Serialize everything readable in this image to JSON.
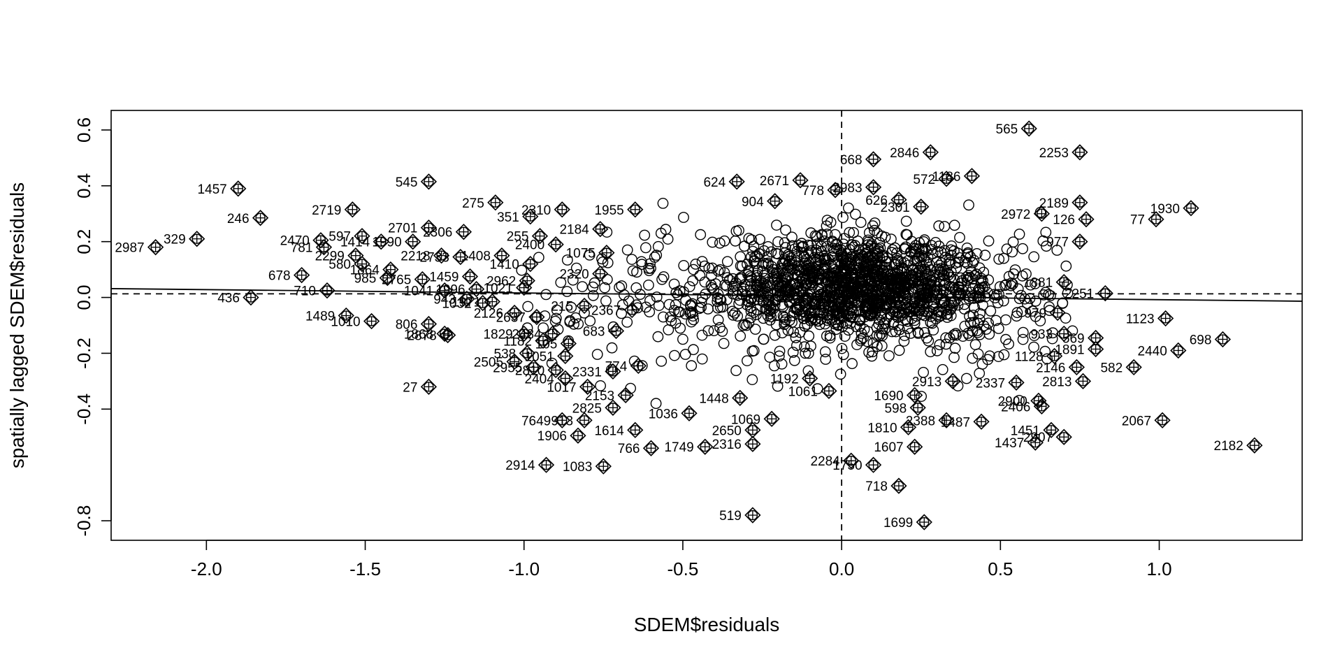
{
  "chart_data": {
    "type": "scatter",
    "title": "",
    "xlabel": "SDEM$residuals",
    "ylabel": "spatially lagged SDEM$residuals",
    "xlim": [
      -2.3,
      1.45
    ],
    "ylim": [
      -0.87,
      0.67
    ],
    "xticks": [
      -2.0,
      -1.5,
      -1.0,
      -0.5,
      0.0,
      0.5,
      1.0
    ],
    "xtick_labels": [
      "-2.0",
      "-1.5",
      "-1.0",
      "-0.5",
      "0.0",
      "0.5",
      "1.0"
    ],
    "yticks": [
      -0.8,
      -0.4,
      -0.2,
      0.0,
      0.2,
      0.4,
      0.6
    ],
    "ytick_labels": [
      "-0.8",
      "-0.4",
      "-0.2",
      "0.0",
      "0.2",
      "0.4",
      "0.6"
    ],
    "grid": false,
    "legend": "none",
    "reference_lines": {
      "vertical_dashed_x": 0.0,
      "horizontal_dashed_y": 0.013,
      "regression_line": {
        "intercept": 0.004,
        "slope": -0.012
      }
    },
    "influential_points": [
      {
        "label": "1457",
        "x": -1.9,
        "y": 0.39
      },
      {
        "label": "246",
        "x": -1.83,
        "y": 0.285
      },
      {
        "label": "2987",
        "x": -2.16,
        "y": 0.18
      },
      {
        "label": "329",
        "x": -2.03,
        "y": 0.21
      },
      {
        "label": "436",
        "x": -1.86,
        "y": 0.0
      },
      {
        "label": "678",
        "x": -1.7,
        "y": 0.08
      },
      {
        "label": "710",
        "x": -1.62,
        "y": 0.025
      },
      {
        "label": "1489",
        "x": -1.56,
        "y": -0.065
      },
      {
        "label": "1010",
        "x": -1.48,
        "y": -0.085
      },
      {
        "label": "2719",
        "x": -1.54,
        "y": 0.315
      },
      {
        "label": "545",
        "x": -1.3,
        "y": 0.415
      },
      {
        "label": "2701",
        "x": -1.3,
        "y": 0.25
      },
      {
        "label": "2306",
        "x": -1.19,
        "y": 0.235
      },
      {
        "label": "597",
        "x": -1.51,
        "y": 0.22
      },
      {
        "label": "1414",
        "x": -1.45,
        "y": 0.2
      },
      {
        "label": "1990",
        "x": -1.35,
        "y": 0.2
      },
      {
        "label": "2470",
        "x": -1.64,
        "y": 0.205
      },
      {
        "label": "781",
        "x": -1.63,
        "y": 0.18
      },
      {
        "label": "2299",
        "x": -1.53,
        "y": 0.15
      },
      {
        "label": "580",
        "x": -1.51,
        "y": 0.12
      },
      {
        "label": "1864",
        "x": -1.42,
        "y": 0.1
      },
      {
        "label": "985",
        "x": -1.43,
        "y": 0.07
      },
      {
        "label": "2765",
        "x": -1.32,
        "y": 0.065
      },
      {
        "label": "2218",
        "x": -1.26,
        "y": 0.15
      },
      {
        "label": "2733",
        "x": -1.2,
        "y": 0.145
      },
      {
        "label": "1459",
        "x": -1.17,
        "y": 0.075
      },
      {
        "label": "1041",
        "x": -1.25,
        "y": 0.025
      },
      {
        "label": "1996",
        "x": -1.15,
        "y": 0.03
      },
      {
        "label": "943",
        "x": -1.18,
        "y": -0.005
      },
      {
        "label": "1032",
        "x": -1.13,
        "y": -0.02
      },
      {
        "label": "806",
        "x": -1.3,
        "y": -0.095
      },
      {
        "label": "1868",
        "x": -1.25,
        "y": -0.13
      },
      {
        "label": "2878",
        "x": -1.24,
        "y": -0.135
      },
      {
        "label": "27",
        "x": -1.3,
        "y": -0.32
      },
      {
        "label": "275",
        "x": -1.09,
        "y": 0.34
      },
      {
        "label": "351",
        "x": -0.98,
        "y": 0.29
      },
      {
        "label": "2310",
        "x": -0.88,
        "y": 0.315
      },
      {
        "label": "1955",
        "x": -0.65,
        "y": 0.315
      },
      {
        "label": "255",
        "x": -0.95,
        "y": 0.22
      },
      {
        "label": "2184",
        "x": -0.76,
        "y": 0.245
      },
      {
        "label": "2400",
        "x": -0.9,
        "y": 0.19
      },
      {
        "label": "1075",
        "x": -0.74,
        "y": 0.16
      },
      {
        "label": "1408",
        "x": -1.07,
        "y": 0.15
      },
      {
        "label": "1410",
        "x": -0.98,
        "y": 0.12
      },
      {
        "label": "2320",
        "x": -0.76,
        "y": 0.085
      },
      {
        "label": "2962",
        "x": -0.99,
        "y": 0.06
      },
      {
        "label": "1021",
        "x": -1.0,
        "y": 0.035
      },
      {
        "label": "1971",
        "x": -1.1,
        "y": -0.015
      },
      {
        "label": "2126",
        "x": -1.03,
        "y": -0.055
      },
      {
        "label": "2637",
        "x": -0.96,
        "y": -0.07
      },
      {
        "label": "215",
        "x": -0.81,
        "y": -0.03
      },
      {
        "label": "2367",
        "x": -0.66,
        "y": -0.045
      },
      {
        "label": "1829",
        "x": -1.0,
        "y": -0.13
      },
      {
        "label": "1182",
        "x": -0.94,
        "y": -0.155
      },
      {
        "label": "2484",
        "x": -0.91,
        "y": -0.13
      },
      {
        "label": "105",
        "x": -0.86,
        "y": -0.165
      },
      {
        "label": "683",
        "x": -0.71,
        "y": -0.12
      },
      {
        "label": "1051",
        "x": -0.87,
        "y": -0.21
      },
      {
        "label": "538",
        "x": -0.99,
        "y": -0.2
      },
      {
        "label": "2505",
        "x": -1.03,
        "y": -0.23
      },
      {
        "label": "2955",
        "x": -0.97,
        "y": -0.25
      },
      {
        "label": "2810",
        "x": -0.9,
        "y": -0.26
      },
      {
        "label": "2404",
        "x": -0.87,
        "y": -0.29
      },
      {
        "label": "1017",
        "x": -0.8,
        "y": -0.32
      },
      {
        "label": "2331",
        "x": -0.72,
        "y": -0.265
      },
      {
        "label": "774",
        "x": -0.64,
        "y": -0.245
      },
      {
        "label": "2153",
        "x": -0.68,
        "y": -0.35
      },
      {
        "label": "2825",
        "x": -0.72,
        "y": -0.395
      },
      {
        "label": "7649",
        "x": -0.88,
        "y": -0.44
      },
      {
        "label": "913",
        "x": -0.81,
        "y": -0.44
      },
      {
        "label": "1614",
        "x": -0.65,
        "y": -0.475
      },
      {
        "label": "1906",
        "x": -0.83,
        "y": -0.495
      },
      {
        "label": "1036",
        "x": -0.48,
        "y": -0.415
      },
      {
        "label": "766",
        "x": -0.6,
        "y": -0.54
      },
      {
        "label": "1749",
        "x": -0.43,
        "y": -0.535
      },
      {
        "label": "2914",
        "x": -0.93,
        "y": -0.6
      },
      {
        "label": "1083",
        "x": -0.75,
        "y": -0.605
      },
      {
        "label": "2650",
        "x": -0.28,
        "y": -0.475
      },
      {
        "label": "2316",
        "x": -0.28,
        "y": -0.525
      },
      {
        "label": "519",
        "x": -0.28,
        "y": -0.78
      },
      {
        "label": "1448",
        "x": -0.32,
        "y": -0.36
      },
      {
        "label": "1069",
        "x": -0.22,
        "y": -0.435
      },
      {
        "label": "1192",
        "x": -0.1,
        "y": -0.29
      },
      {
        "label": "1061",
        "x": -0.04,
        "y": -0.335
      },
      {
        "label": "624",
        "x": -0.33,
        "y": 0.415
      },
      {
        "label": "2671",
        "x": -0.13,
        "y": 0.42
      },
      {
        "label": "904",
        "x": -0.21,
        "y": 0.345
      },
      {
        "label": "778",
        "x": -0.02,
        "y": 0.385
      },
      {
        "label": "2983",
        "x": 0.1,
        "y": 0.395
      },
      {
        "label": "668",
        "x": 0.1,
        "y": 0.495
      },
      {
        "label": "2846",
        "x": 0.28,
        "y": 0.52
      },
      {
        "label": "626",
        "x": 0.18,
        "y": 0.35
      },
      {
        "label": "2301",
        "x": 0.25,
        "y": 0.325
      },
      {
        "label": "572",
        "x": 0.33,
        "y": 0.425
      },
      {
        "label": "1186",
        "x": 0.41,
        "y": 0.435
      },
      {
        "label": "565",
        "x": 0.59,
        "y": 0.605
      },
      {
        "label": "2253",
        "x": 0.75,
        "y": 0.52
      },
      {
        "label": "2189",
        "x": 0.75,
        "y": 0.34
      },
      {
        "label": "2972",
        "x": 0.63,
        "y": 0.3
      },
      {
        "label": "126",
        "x": 0.77,
        "y": 0.28
      },
      {
        "label": "977",
        "x": 0.75,
        "y": 0.2
      },
      {
        "label": "1930",
        "x": 1.1,
        "y": 0.32
      },
      {
        "label": "77",
        "x": 0.99,
        "y": 0.28
      },
      {
        "label": "1881",
        "x": 0.7,
        "y": 0.055
      },
      {
        "label": "2251",
        "x": 0.83,
        "y": 0.015
      },
      {
        "label": "979",
        "x": 0.68,
        "y": -0.055
      },
      {
        "label": "1123",
        "x": 1.02,
        "y": -0.075
      },
      {
        "label": "933",
        "x": 0.7,
        "y": -0.13
      },
      {
        "label": "569",
        "x": 0.8,
        "y": -0.145
      },
      {
        "label": "698",
        "x": 1.2,
        "y": -0.15
      },
      {
        "label": "1891",
        "x": 0.8,
        "y": -0.185
      },
      {
        "label": "2440",
        "x": 1.06,
        "y": -0.19
      },
      {
        "label": "1128",
        "x": 0.67,
        "y": -0.21
      },
      {
        "label": "2146",
        "x": 0.74,
        "y": -0.25
      },
      {
        "label": "582",
        "x": 0.92,
        "y": -0.25
      },
      {
        "label": "2813",
        "x": 0.76,
        "y": -0.3
      },
      {
        "label": "2913",
        "x": 0.35,
        "y": -0.3
      },
      {
        "label": "2337",
        "x": 0.55,
        "y": -0.305
      },
      {
        "label": "1690",
        "x": 0.23,
        "y": -0.35
      },
      {
        "label": "2900",
        "x": 0.62,
        "y": -0.37
      },
      {
        "label": "2406",
        "x": 0.63,
        "y": -0.39
      },
      {
        "label": "598",
        "x": 0.24,
        "y": -0.395
      },
      {
        "label": "2388",
        "x": 0.33,
        "y": -0.44
      },
      {
        "label": "1487",
        "x": 0.44,
        "y": -0.445
      },
      {
        "label": "1810",
        "x": 0.21,
        "y": -0.465
      },
      {
        "label": "1451",
        "x": 0.66,
        "y": -0.475
      },
      {
        "label": "2907",
        "x": 0.7,
        "y": -0.5
      },
      {
        "label": "1437",
        "x": 0.61,
        "y": -0.52
      },
      {
        "label": "2067",
        "x": 1.01,
        "y": -0.44
      },
      {
        "label": "2182",
        "x": 1.3,
        "y": -0.53
      },
      {
        "label": "1607",
        "x": 0.23,
        "y": -0.535
      },
      {
        "label": "2284",
        "x": 0.03,
        "y": -0.585
      },
      {
        "label": "1750",
        "x": 0.1,
        "y": -0.6
      },
      {
        "label": "718",
        "x": 0.18,
        "y": -0.675
      },
      {
        "label": "1699",
        "x": 0.26,
        "y": -0.805
      }
    ]
  }
}
